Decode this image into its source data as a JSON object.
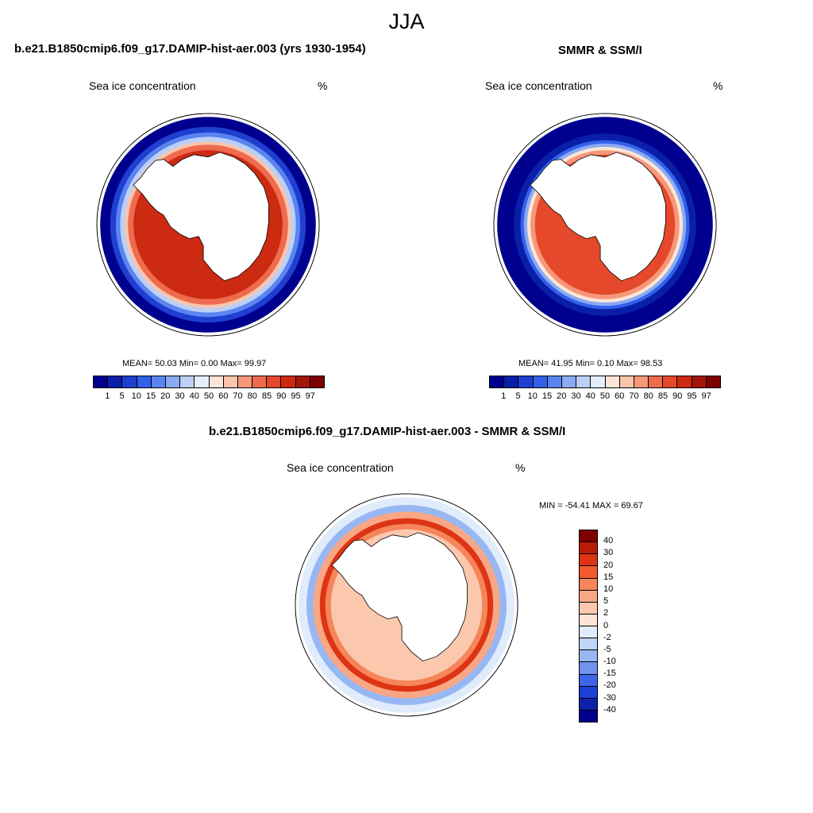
{
  "season": "JJA",
  "panels": [
    {
      "title": "b.e21.B1850cmip6.f09_g17.DAMIP-hist-aer.003 (yrs 1930-1954)",
      "variable": "Sea ice concentration",
      "unit": "%",
      "stats": "MEAN=  50.03  Min=   0.00  Max=  99.97"
    },
    {
      "title": "SMMR & SSM/I",
      "variable": "Sea ice concentration",
      "unit": "%",
      "stats": "MEAN=  41.95  Min=   0.10  Max=  98.53"
    },
    {
      "title": "b.e21.B1850cmip6.f09_g17.DAMIP-hist-aer.003 - SMMR & SSM/I",
      "variable": "Sea ice concentration",
      "unit": "%",
      "stats": "MIN = -54.41 MAX =  69.67"
    }
  ],
  "conc_colorbar": {
    "labels": [
      "1",
      "5",
      "10",
      "15",
      "20",
      "30",
      "40",
      "50",
      "60",
      "70",
      "80",
      "85",
      "90",
      "95",
      "97"
    ],
    "colors": [
      "#00008f",
      "#0a1fa8",
      "#1e3fd0",
      "#3260ea",
      "#5b84f0",
      "#8aaaf2",
      "#bcd0f7",
      "#e4eefb",
      "#fde5d6",
      "#fbc4ac",
      "#f6977a",
      "#ee6b4d",
      "#e5482a",
      "#cc2a11",
      "#a3160a",
      "#7e0000"
    ]
  },
  "diff_colorbar": {
    "labels": [
      "40",
      "30",
      "20",
      "15",
      "10",
      "5",
      "2",
      "0",
      "-2",
      "-5",
      "-10",
      "-15",
      "-20",
      "-30",
      "-40"
    ],
    "colors": [
      "#7e0000",
      "#b81c08",
      "#dd3414",
      "#f45a2c",
      "#f6855a",
      "#f8a785",
      "#fbc8ae",
      "#fde5d6",
      "#e0ecfb",
      "#c0d5f7",
      "#97b7f3",
      "#6f93ef",
      "#3d67ea",
      "#1b40d6",
      "#0b22a8",
      "#00008f"
    ]
  },
  "maps": [
    {
      "name": "model",
      "ice_rings": [
        {
          "r": 0.97,
          "color": "#00008f"
        },
        {
          "r": 0.88,
          "color": "#1e3fd0"
        },
        {
          "r": 0.83,
          "color": "#5b84f0"
        },
        {
          "r": 0.79,
          "color": "#bcd0f7"
        },
        {
          "r": 0.75,
          "color": "#fbc4ac"
        },
        {
          "r": 0.72,
          "color": "#ee6b4d"
        },
        {
          "r": 0.67,
          "color": "#cc2a11"
        }
      ]
    },
    {
      "name": "obs",
      "ice_rings": [
        {
          "r": 0.97,
          "color": "#00008f"
        },
        {
          "r": 0.82,
          "color": "#0a1fa8"
        },
        {
          "r": 0.76,
          "color": "#3260ea"
        },
        {
          "r": 0.73,
          "color": "#8aaaf2"
        },
        {
          "r": 0.7,
          "color": "#fde5d6"
        },
        {
          "r": 0.67,
          "color": "#f6977a"
        },
        {
          "r": 0.63,
          "color": "#e5482a"
        }
      ]
    },
    {
      "name": "diff",
      "ice_rings": [
        {
          "r": 0.97,
          "color": "#e0ecfb"
        },
        {
          "r": 0.9,
          "color": "#97b7f3"
        },
        {
          "r": 0.84,
          "color": "#f8a785"
        },
        {
          "r": 0.78,
          "color": "#dd3414"
        },
        {
          "r": 0.73,
          "color": "#f6855a"
        },
        {
          "r": 0.68,
          "color": "#fbc8ae"
        }
      ]
    }
  ]
}
